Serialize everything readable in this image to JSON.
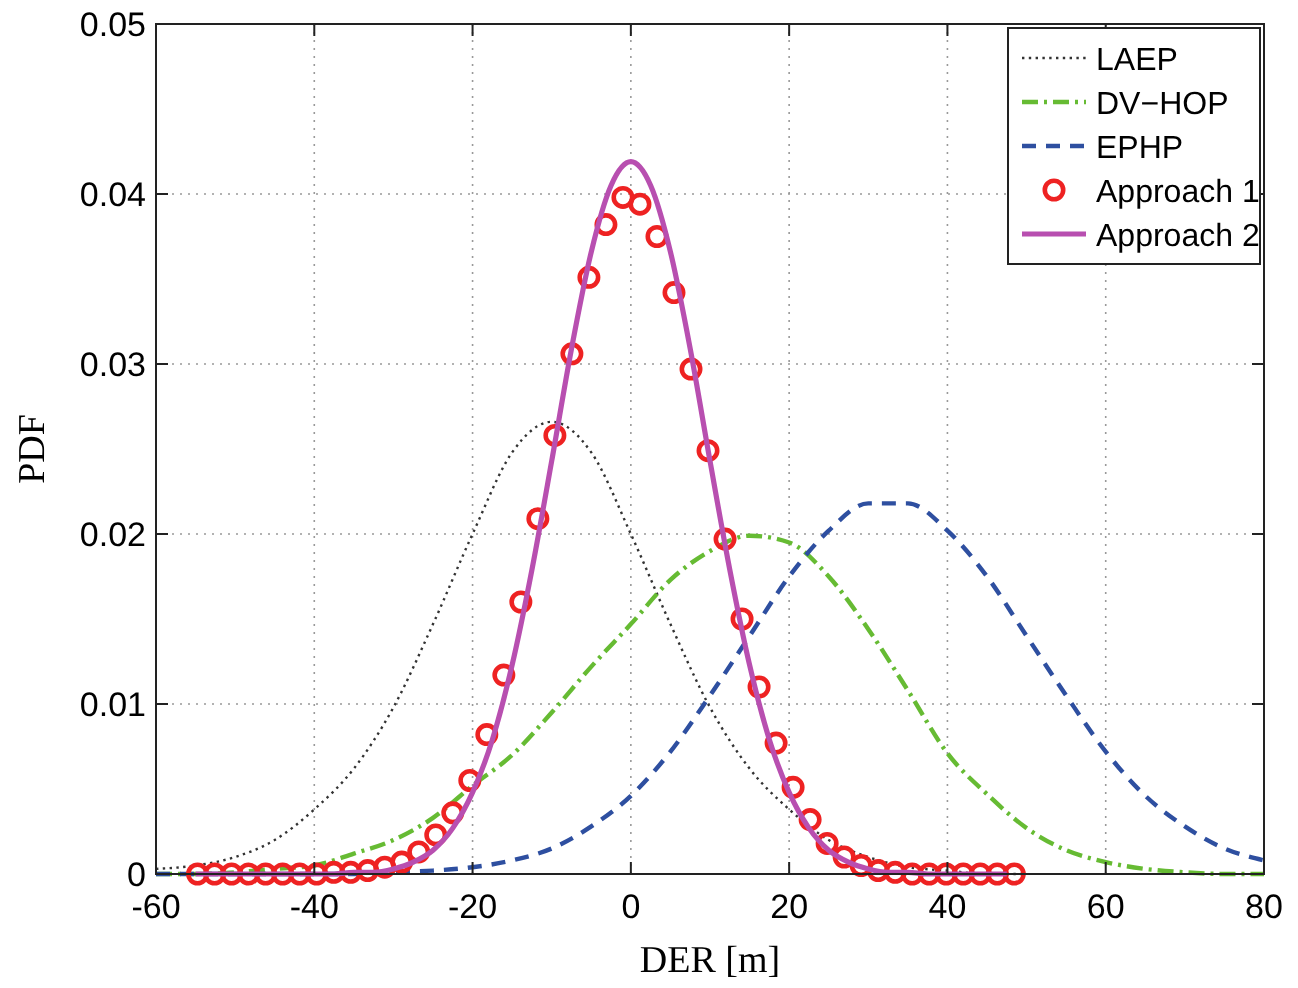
{
  "chart_data": {
    "type": "line",
    "xlabel": "DER [m]",
    "ylabel": "PDF",
    "xlim": [
      -60,
      80
    ],
    "ylim": [
      0,
      0.05
    ],
    "xticks": [
      -60,
      -40,
      -20,
      0,
      20,
      40,
      60,
      80
    ],
    "yticks": [
      0,
      0.01,
      0.02,
      0.03,
      0.04,
      0.05
    ],
    "grid": true,
    "legend": "top right",
    "series": [
      {
        "name": "LAEP",
        "color": "#333333",
        "line_style": "dotted",
        "marker": "none",
        "x": [
          -60,
          -55,
          -50,
          -45,
          -40,
          -35,
          -30,
          -25,
          -20,
          -15,
          -10,
          -5,
          0,
          5,
          10,
          15,
          20,
          25,
          30,
          35,
          40,
          45,
          50
        ],
        "values": [
          0.0003,
          0.0005,
          0.001,
          0.002,
          0.0038,
          0.0062,
          0.0098,
          0.0147,
          0.02,
          0.0248,
          0.0266,
          0.0248,
          0.02,
          0.0147,
          0.0098,
          0.0062,
          0.0038,
          0.002,
          0.001,
          0.0004,
          0.0002,
          0,
          0
        ]
      },
      {
        "name": "DV−HOP",
        "color": "#66bb33",
        "line_style": "dashdot",
        "marker": "none",
        "x": [
          -60,
          -55,
          -50,
          -45,
          -40,
          -35,
          -30,
          -25,
          -20,
          -15,
          -10,
          -5,
          0,
          5,
          10,
          15,
          20,
          25,
          30,
          35,
          40,
          45,
          50,
          55,
          60,
          65,
          70,
          75,
          80
        ],
        "values": [
          0,
          0,
          0.0001,
          0.0003,
          0.0005,
          0.0012,
          0.002,
          0.0033,
          0.0052,
          0.007,
          0.0095,
          0.0122,
          0.0147,
          0.0173,
          0.019,
          0.0199,
          0.0195,
          0.0175,
          0.0144,
          0.0108,
          0.0071,
          0.0047,
          0.0027,
          0.0014,
          0.0007,
          0.0003,
          0.0001,
          0,
          0
        ]
      },
      {
        "name": "EPHP",
        "color": "#2e4fa0",
        "line_style": "dashed",
        "marker": "none",
        "x": [
          -60,
          -55,
          -50,
          -45,
          -40,
          -35,
          -30,
          -25,
          -20,
          -15,
          -10,
          -5,
          0,
          5,
          10,
          15,
          20,
          25,
          30,
          35,
          40,
          45,
          50,
          55,
          60,
          65,
          70,
          75,
          80
        ],
        "values": [
          0,
          0,
          0,
          0,
          0,
          0,
          0.0001,
          0.0002,
          0.0004,
          0.0008,
          0.0015,
          0.0028,
          0.0046,
          0.0072,
          0.0105,
          0.014,
          0.0175,
          0.0202,
          0.0218,
          0.0218,
          0.0202,
          0.0175,
          0.014,
          0.0105,
          0.0072,
          0.0046,
          0.0028,
          0.0015,
          0.0008
        ]
      },
      {
        "name": "Approach 1",
        "type": "scatter",
        "color": "#ee2222",
        "marker": "circle",
        "x": [
          -54.75,
          -52.6,
          -50.45,
          -48.3,
          -46.15,
          -44,
          -41.85,
          -39.7,
          -37.55,
          -35.4,
          -33.25,
          -31.1,
          -28.95,
          -26.8,
          -24.65,
          -22.5,
          -20.35,
          -18.2,
          -16.05,
          -13.9,
          -11.75,
          -9.6,
          -7.45,
          -5.3,
          -3.15,
          -1,
          1.15,
          3.3,
          5.45,
          7.6,
          9.75,
          11.9,
          14.05,
          16.2,
          18.35,
          20.5,
          22.65,
          24.8,
          26.95,
          29.1,
          31.25,
          33.4,
          35.55,
          37.7,
          39.85,
          42,
          44.15,
          46.3,
          48.45
        ],
        "values": [
          0,
          0,
          0,
          0,
          0,
          0,
          0,
          0,
          0.0001,
          0.0001,
          0.0002,
          0.0004,
          0.0007,
          0.0013,
          0.0023,
          0.0036,
          0.0055,
          0.0082,
          0.0117,
          0.016,
          0.0209,
          0.0258,
          0.0306,
          0.0351,
          0.0382,
          0.0398,
          0.0394,
          0.0375,
          0.0342,
          0.0297,
          0.0249,
          0.0197,
          0.015,
          0.011,
          0.0077,
          0.0051,
          0.0032,
          0.0018,
          0.001,
          0.0005,
          0.0002,
          0.0001,
          0,
          0,
          0,
          0,
          0,
          0,
          0
        ]
      },
      {
        "name": "Approach 2",
        "color": "#b84fb0",
        "line_style": "solid",
        "marker": "none",
        "x": [
          -55,
          -50,
          -45,
          -40,
          -37.5,
          -35,
          -32.5,
          -30,
          -27.5,
          -25,
          -22.5,
          -20,
          -17.5,
          -15,
          -12.5,
          -10,
          -7.5,
          -5,
          -2.5,
          0,
          2.5,
          5,
          7.5,
          10,
          12.5,
          15,
          17.5,
          20,
          22.5,
          25,
          27.5,
          30,
          32.5,
          35,
          37.5,
          40,
          45,
          47.5
        ],
        "values": [
          0,
          0,
          0,
          0,
          0,
          0.0001,
          0.0001,
          0.0003,
          0.0007,
          0.0014,
          0.0027,
          0.0048,
          0.0079,
          0.0123,
          0.0179,
          0.0243,
          0.0309,
          0.0366,
          0.0405,
          0.0419,
          0.0405,
          0.0366,
          0.0309,
          0.0243,
          0.0179,
          0.0123,
          0.0079,
          0.0048,
          0.0027,
          0.0014,
          0.0007,
          0.0003,
          0.0001,
          0.0001,
          0,
          0,
          0,
          0
        ]
      }
    ]
  }
}
